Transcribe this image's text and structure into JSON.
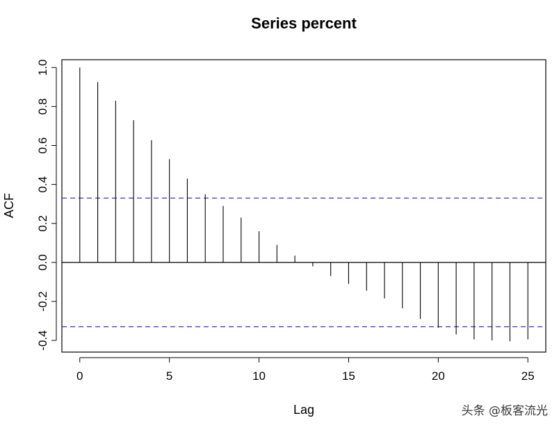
{
  "watermark": "头条 @板客流光",
  "chart_data": {
    "type": "bar",
    "title": "Series  percent",
    "xlabel": "Lag",
    "ylabel": "ACF",
    "xlim": [
      -1,
      26
    ],
    "ylim": [
      -0.46,
      1.04
    ],
    "x_ticks": [
      0,
      5,
      10,
      15,
      20,
      25
    ],
    "x_tick_labels": [
      "0",
      "5",
      "10",
      "15",
      "20",
      "25"
    ],
    "y_ticks": [
      -0.4,
      -0.2,
      0.0,
      0.2,
      0.4,
      0.6,
      0.8,
      1.0
    ],
    "y_tick_labels": [
      "-0.4",
      "-0.2",
      "0.0",
      "0.2",
      "0.4",
      "0.6",
      "0.8",
      "1.0"
    ],
    "grid": false,
    "lags": [
      0,
      1,
      2,
      3,
      4,
      5,
      6,
      7,
      8,
      9,
      10,
      11,
      12,
      13,
      14,
      15,
      16,
      17,
      18,
      19,
      20,
      21,
      22,
      23,
      24,
      25
    ],
    "values": [
      1.0,
      0.925,
      0.83,
      0.73,
      0.627,
      0.53,
      0.43,
      0.35,
      0.29,
      0.23,
      0.16,
      0.09,
      0.035,
      -0.02,
      -0.07,
      -0.11,
      -0.145,
      -0.185,
      -0.235,
      -0.29,
      -0.335,
      -0.37,
      -0.395,
      -0.4,
      -0.405,
      -0.395
    ],
    "confidence_bounds": [
      0.33,
      -0.33
    ],
    "colors": {
      "lines": "#000000",
      "confidence": "#3333cc",
      "frame": "#000000"
    }
  }
}
